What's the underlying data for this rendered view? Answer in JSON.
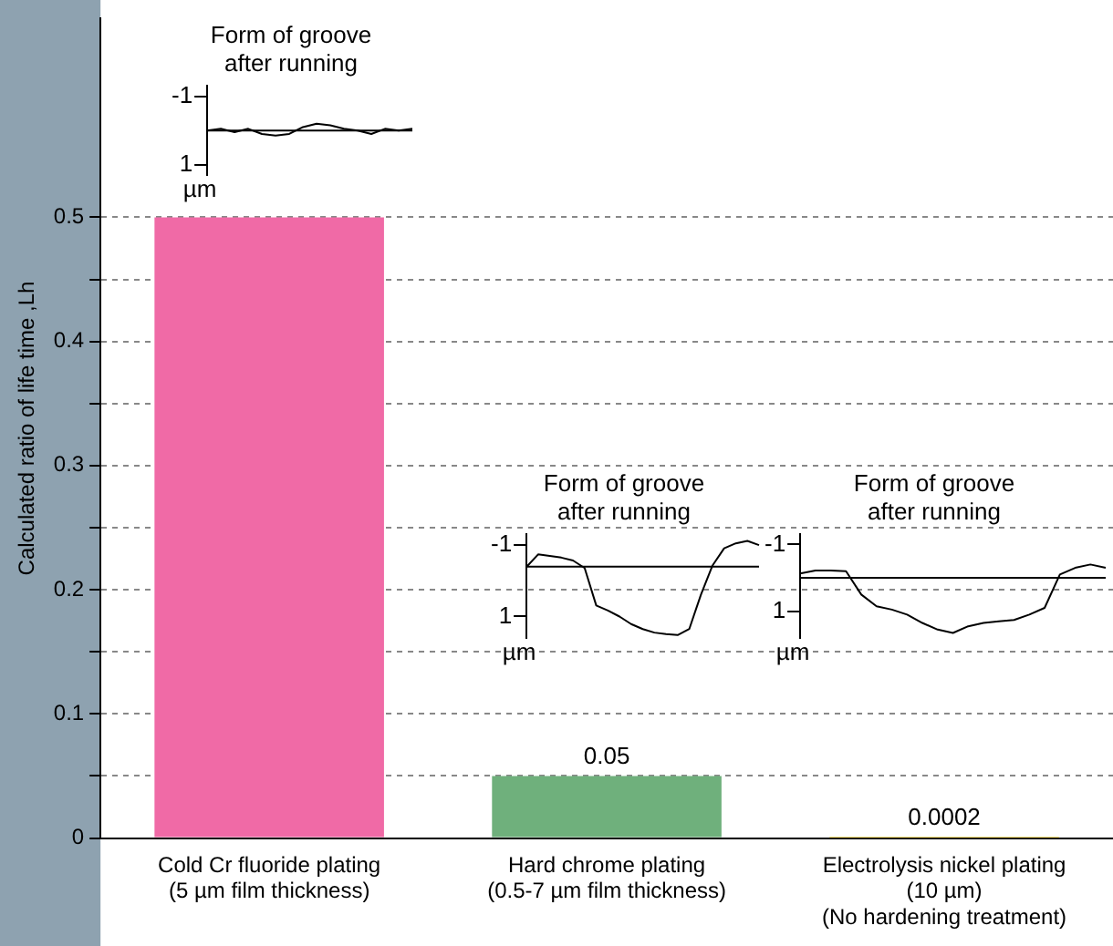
{
  "chart_data": [
    {
      "type": "bar",
      "ylabel": "Calculated ratio of life time ,Lh",
      "categories": [
        "Cold Cr fluoride plating\n(5 µm film thickness)",
        "Hard chrome plating\n(0.5-7 µm film thickness)",
        "Electrolysis nickel plating\n(10 µm)\n(No hardening treatment)"
      ],
      "values": [
        0.5,
        0.05,
        0.0002
      ],
      "colors": [
        "#f06aa6",
        "#6fb07c",
        "#f2c200"
      ],
      "value_labels": [
        null,
        "0.05",
        "0.0002"
      ],
      "ylim": [
        0,
        0.66
      ],
      "yticks": [
        0,
        {
          "value": 0.05,
          "label": null
        },
        0.1,
        {
          "value": 0.15,
          "label": null
        },
        0.2,
        {
          "value": 0.25,
          "label": null
        },
        0.3,
        {
          "value": 0.35,
          "label": null
        },
        0.4,
        {
          "value": 0.45,
          "label": null
        },
        0.5
      ],
      "grid": "y"
    },
    {
      "type": "line",
      "title": "Form of groove\nafter running",
      "ylabel": "µm",
      "categories": [
        null,
        null,
        null,
        null,
        null,
        null,
        null,
        null,
        null,
        null,
        null,
        null,
        null,
        null,
        null,
        null
      ],
      "series": [
        {
          "color": "#000000",
          "values": [
            0,
            -0.05,
            0.05,
            -0.05,
            0.1,
            0.15,
            0.1,
            -0.1,
            -0.2,
            -0.15,
            -0.05,
            0,
            0.1,
            -0.05,
            0,
            -0.05
          ]
        }
      ],
      "ylim": [
        1.3,
        -1.3
      ],
      "yticks": [
        -1,
        1
      ],
      "tick_labels": "y",
      "marker": "none",
      "ref_lines": [
        {
          "axis": "y",
          "value": 0,
          "label": null
        }
      ]
    },
    {
      "type": "line",
      "title": "Form of groove\nafter running",
      "ylabel": "µm",
      "categories": [
        null,
        null,
        null,
        null,
        null,
        null,
        null,
        null,
        null,
        null,
        null,
        null,
        null,
        null,
        null,
        null,
        null,
        null,
        null,
        null,
        null
      ],
      "series": [
        {
          "color": "#000000",
          "values": [
            -0.39,
            -0.74,
            -0.7,
            -0.65,
            -0.57,
            -0.36,
            0.69,
            0.83,
            1.0,
            1.21,
            1.35,
            1.45,
            1.49,
            1.52,
            1.35,
            0.39,
            -0.43,
            -0.91,
            -1.05,
            -1.12,
            -1.0
          ]
        }
      ],
      "ylim": [
        1.6,
        -1.3
      ],
      "yticks": [
        -1,
        1
      ],
      "tick_labels": "y",
      "marker": "none",
      "ref_lines": [
        {
          "axis": "y",
          "value": -0.4,
          "label": null
        }
      ]
    },
    {
      "type": "line",
      "title": "Form of groove\nafter running",
      "ylabel": "µm",
      "categories": [
        null,
        null,
        null,
        null,
        null,
        null,
        null,
        null,
        null,
        null,
        null,
        null,
        null,
        null,
        null,
        null,
        null,
        null,
        null,
        null,
        null
      ],
      "series": [
        {
          "color": "#000000",
          "values": [
            -0.13,
            -0.22,
            -0.22,
            -0.2,
            0.5,
            0.85,
            0.95,
            1.1,
            1.35,
            1.55,
            1.65,
            1.45,
            1.35,
            1.3,
            1.26,
            1.1,
            0.9,
            -0.1,
            -0.3,
            -0.4,
            -0.3
          ]
        }
      ],
      "ylim": [
        1.8,
        -1.3
      ],
      "yticks": [
        -1,
        1
      ],
      "tick_labels": "y",
      "marker": "none",
      "ref_lines": [
        {
          "axis": "y",
          "value": 0,
          "label": null
        }
      ]
    }
  ]
}
